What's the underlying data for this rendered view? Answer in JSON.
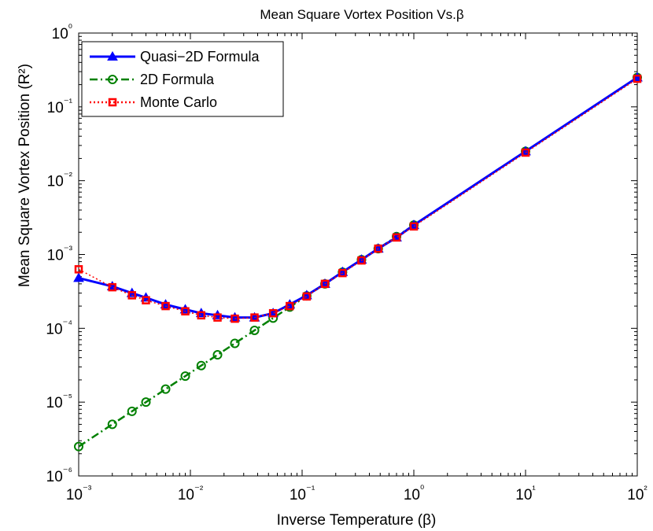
{
  "chart_data": {
    "type": "line",
    "title": "Mean Square Vortex Position Vs.β",
    "xlabel": "Inverse Temperature (β)",
    "ylabel": "Mean Square Vortex Position (R²)",
    "x_scale": "log",
    "y_scale": "log",
    "xlim": [
      0.001,
      100
    ],
    "ylim": [
      1e-06,
      1
    ],
    "grid": false,
    "legend_position": "top-left",
    "x_ticks": [
      {
        "value": 0.001,
        "label": "10⁻³"
      },
      {
        "value": 0.01,
        "label": "10⁻²"
      },
      {
        "value": 0.1,
        "label": "10⁻¹"
      },
      {
        "value": 1,
        "label": "10⁰"
      },
      {
        "value": 10,
        "label": "10¹"
      },
      {
        "value": 100,
        "label": "10²"
      }
    ],
    "y_ticks": [
      {
        "value": 1e-06,
        "label": "10⁻⁶"
      },
      {
        "value": 1e-05,
        "label": "10⁻⁵"
      },
      {
        "value": 0.0001,
        "label": "10⁻⁴"
      },
      {
        "value": 0.001,
        "label": "10⁻³"
      },
      {
        "value": 0.01,
        "label": "10⁻²"
      },
      {
        "value": 0.1,
        "label": "10⁻¹"
      },
      {
        "value": 1,
        "label": "10⁰"
      }
    ],
    "series": [
      {
        "name": "Quasi−2D Formula",
        "color": "#0000ff",
        "line_style": "solid",
        "marker": "triangle",
        "x": [
          0.001,
          0.002,
          0.003,
          0.004,
          0.006,
          0.009,
          0.0125,
          0.0175,
          0.025,
          0.0375,
          0.055,
          0.0775,
          0.11,
          0.16,
          0.23,
          0.34,
          0.48,
          0.7,
          1,
          10,
          100
        ],
        "y": [
          0.00048,
          0.00037,
          0.0003,
          0.00026,
          0.00021,
          0.00018,
          0.00016,
          0.00015,
          0.00014,
          0.00014,
          0.00016,
          0.00021,
          0.00028,
          0.0004,
          0.00058,
          0.00085,
          0.0012,
          0.0017,
          0.0025,
          0.025,
          0.25
        ]
      },
      {
        "name": "2D Formula",
        "color": "#008000",
        "line_style": "dash-dot",
        "marker": "circle",
        "x": [
          0.001,
          0.002,
          0.003,
          0.004,
          0.006,
          0.009,
          0.0125,
          0.0175,
          0.025,
          0.0375,
          0.055,
          0.0775,
          0.11,
          0.16,
          0.23,
          0.34,
          0.48,
          0.7,
          1,
          10,
          100
        ],
        "y": [
          2.5e-06,
          5e-06,
          7.5e-06,
          1e-05,
          1.5e-05,
          2.25e-05,
          3.125e-05,
          4.375e-05,
          6.25e-05,
          9.375e-05,
          0.0001375,
          0.00019375,
          0.000275,
          0.0004,
          0.000575,
          0.00085,
          0.0012,
          0.00175,
          0.0025,
          0.025,
          0.25
        ]
      },
      {
        "name": "Monte Carlo",
        "color": "#ff0000",
        "line_style": "dotted",
        "marker": "square",
        "x": [
          0.001,
          0.002,
          0.003,
          0.004,
          0.006,
          0.009,
          0.0125,
          0.0175,
          0.025,
          0.0375,
          0.055,
          0.0775,
          0.11,
          0.16,
          0.23,
          0.34,
          0.48,
          0.7,
          1,
          10,
          100
        ],
        "y": [
          0.00063,
          0.00036,
          0.00028,
          0.00024,
          0.0002,
          0.00017,
          0.00015,
          0.00014,
          0.000135,
          0.00014,
          0.00016,
          0.0002,
          0.00027,
          0.0004,
          0.00056,
          0.00083,
          0.0012,
          0.0017,
          0.0024,
          0.024,
          0.24
        ]
      }
    ]
  }
}
